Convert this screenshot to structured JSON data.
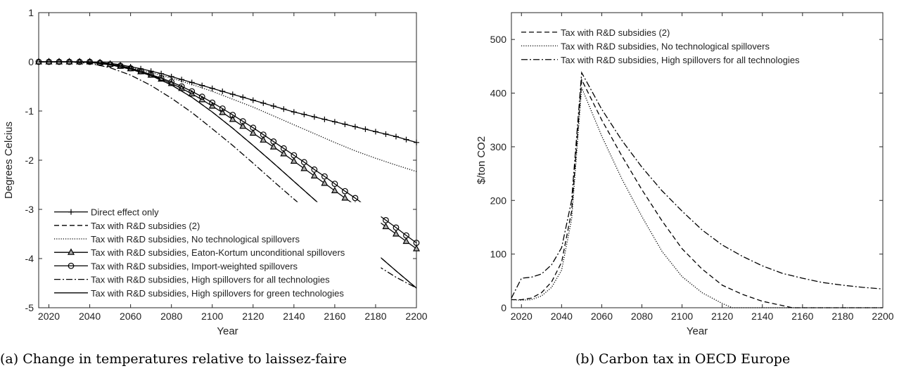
{
  "captions": {
    "a": "(a) Change in temperatures relative to laissez-faire",
    "b": "(b) Carbon tax in OECD Europe"
  },
  "chart_data": [
    {
      "type": "line",
      "xlabel": "Year",
      "ylabel": "Degrees Celcius",
      "xlim": [
        2015,
        2200
      ],
      "ylim": [
        -5,
        1
      ],
      "xticks": [
        "2020",
        "2040",
        "2060",
        "2080",
        "2100",
        "2120",
        "2140",
        "2160",
        "2180",
        "2200"
      ],
      "yticks": [
        "-5",
        "-4",
        "-3",
        "-2",
        "-1",
        "0",
        "1"
      ],
      "legend_position": "bottom-left",
      "reference_line_y": 0,
      "series": [
        {
          "name": "Direct effect only",
          "style": "solid-plus",
          "x": [
            2015,
            2020,
            2025,
            2030,
            2035,
            2040,
            2045,
            2050,
            2055,
            2060,
            2065,
            2070,
            2075,
            2080,
            2085,
            2090,
            2095,
            2100,
            2105,
            2110,
            2115,
            2120,
            2125,
            2130,
            2135,
            2140,
            2145,
            2150,
            2155,
            2160,
            2165,
            2170,
            2175,
            2180,
            2185,
            2190,
            2195,
            2200
          ],
          "y": [
            0,
            0,
            0,
            0,
            0,
            0,
            -0.01,
            -0.03,
            -0.06,
            -0.1,
            -0.14,
            -0.19,
            -0.24,
            -0.3,
            -0.36,
            -0.42,
            -0.48,
            -0.54,
            -0.6,
            -0.66,
            -0.72,
            -0.78,
            -0.84,
            -0.9,
            -0.96,
            -1.02,
            -1.07,
            -1.12,
            -1.17,
            -1.22,
            -1.27,
            -1.32,
            -1.37,
            -1.42,
            -1.47,
            -1.52,
            -1.58,
            -1.64
          ]
        },
        {
          "name": "Tax with R&D subsidies (2)",
          "style": "dashed",
          "x": [
            2015,
            2020,
            2030,
            2040,
            2050,
            2060,
            2070,
            2080,
            2090,
            2100,
            2110,
            2120,
            2130,
            2140,
            2150,
            2160,
            2170,
            2180,
            2190,
            2200
          ],
          "y": [
            0,
            0,
            0,
            -0.01,
            -0.06,
            -0.14,
            -0.27,
            -0.47,
            -0.72,
            -1.02,
            -1.35,
            -1.7,
            -2.06,
            -2.43,
            -2.8,
            -3.17,
            -3.53,
            -3.89,
            -4.25,
            -4.6
          ]
        },
        {
          "name": "Tax with R&D subsidies, No technological spillovers",
          "style": "dotted",
          "x": [
            2015,
            2020,
            2030,
            2040,
            2050,
            2060,
            2070,
            2080,
            2090,
            2100,
            2110,
            2120,
            2130,
            2140,
            2150,
            2160,
            2170,
            2180,
            2190,
            2200
          ],
          "y": [
            0,
            0,
            0,
            -0.01,
            -0.05,
            -0.12,
            -0.22,
            -0.33,
            -0.46,
            -0.6,
            -0.76,
            -0.92,
            -1.1,
            -1.28,
            -1.46,
            -1.64,
            -1.81,
            -1.96,
            -2.1,
            -2.23
          ]
        },
        {
          "name": "Tax with R&D subsidies, Eaton-Kortum unconditional spillovers",
          "style": "solid-triangle",
          "x": [
            2015,
            2020,
            2025,
            2030,
            2035,
            2040,
            2045,
            2050,
            2055,
            2060,
            2065,
            2070,
            2075,
            2080,
            2085,
            2090,
            2095,
            2100,
            2105,
            2110,
            2115,
            2120,
            2125,
            2130,
            2135,
            2140,
            2145,
            2150,
            2155,
            2160,
            2165,
            2170,
            2175,
            2180,
            2185,
            2190,
            2195,
            2200
          ],
          "y": [
            0,
            0,
            0,
            0,
            0,
            0,
            -0.02,
            -0.05,
            -0.09,
            -0.14,
            -0.2,
            -0.27,
            -0.35,
            -0.44,
            -0.54,
            -0.65,
            -0.77,
            -0.9,
            -1.03,
            -1.17,
            -1.31,
            -1.45,
            -1.59,
            -1.73,
            -1.87,
            -2.02,
            -2.17,
            -2.32,
            -2.47,
            -2.62,
            -2.77,
            -2.91,
            -3.05,
            -3.2,
            -3.35,
            -3.5,
            -3.65,
            -3.8
          ]
        },
        {
          "name": "Tax with R&D subsidies, Import-weighted spillovers",
          "style": "solid-circle",
          "x": [
            2015,
            2020,
            2025,
            2030,
            2035,
            2040,
            2045,
            2050,
            2055,
            2060,
            2065,
            2070,
            2075,
            2080,
            2085,
            2090,
            2095,
            2100,
            2105,
            2110,
            2115,
            2120,
            2125,
            2130,
            2135,
            2140,
            2145,
            2150,
            2155,
            2160,
            2165,
            2170,
            2175,
            2180,
            2185,
            2190,
            2195,
            2200
          ],
          "y": [
            0,
            0,
            0,
            0,
            0,
            0,
            -0.02,
            -0.05,
            -0.08,
            -0.13,
            -0.19,
            -0.26,
            -0.33,
            -0.41,
            -0.5,
            -0.6,
            -0.71,
            -0.83,
            -0.95,
            -1.08,
            -1.21,
            -1.34,
            -1.48,
            -1.62,
            -1.76,
            -1.9,
            -2.04,
            -2.19,
            -2.33,
            -2.48,
            -2.63,
            -2.77,
            -2.92,
            -3.07,
            -3.22,
            -3.37,
            -3.53,
            -3.68
          ]
        },
        {
          "name": "Tax with R&D subsidies, High spillovers for all technologies",
          "style": "dashdot",
          "x": [
            2015,
            2020,
            2030,
            2040,
            2050,
            2060,
            2070,
            2080,
            2090,
            2100,
            2110,
            2120,
            2130,
            2140,
            2150,
            2160,
            2170,
            2180,
            2190,
            2200
          ],
          "y": [
            0,
            0,
            0,
            -0.03,
            -0.12,
            -0.27,
            -0.48,
            -0.74,
            -1.03,
            -1.36,
            -1.7,
            -2.06,
            -2.43,
            -2.79,
            -3.14,
            -3.48,
            -3.81,
            -4.12,
            -4.38,
            -4.6
          ]
        },
        {
          "name": "Tax with R&D subsidies, High spillovers for green technologies",
          "style": "solid",
          "x": [
            2015,
            2020,
            2030,
            2040,
            2050,
            2060,
            2070,
            2080,
            2090,
            2100,
            2110,
            2120,
            2130,
            2140,
            2150,
            2160,
            2170,
            2180,
            2190,
            2200
          ],
          "y": [
            0,
            0,
            0,
            -0.01,
            -0.06,
            -0.15,
            -0.28,
            -0.47,
            -0.72,
            -1.02,
            -1.35,
            -1.7,
            -2.06,
            -2.43,
            -2.8,
            -3.17,
            -3.53,
            -3.89,
            -4.25,
            -4.6
          ]
        }
      ]
    },
    {
      "type": "line",
      "xlabel": "Year",
      "ylabel": "$/ton CO2",
      "xlim": [
        2015,
        2200
      ],
      "ylim": [
        0,
        550
      ],
      "xticks": [
        "2020",
        "2040",
        "2060",
        "2080",
        "2100",
        "2120",
        "2140",
        "2160",
        "2180",
        "2200"
      ],
      "yticks": [
        "0",
        "100",
        "200",
        "300",
        "400",
        "500"
      ],
      "legend_position": "top-left",
      "series": [
        {
          "name": "Tax with R&D subsidies (2)",
          "style": "dashed",
          "x": [
            2015,
            2020,
            2025,
            2030,
            2035,
            2040,
            2045,
            2050,
            2060,
            2070,
            2080,
            2090,
            2100,
            2110,
            2120,
            2130,
            2140,
            2150,
            2155,
            2160,
            2170,
            2180,
            2190,
            2200
          ],
          "y": [
            15,
            15,
            18,
            28,
            48,
            85,
            180,
            425,
            350,
            283,
            220,
            162,
            110,
            72,
            42,
            25,
            12,
            4,
            0,
            0,
            0,
            0,
            0,
            0
          ]
        },
        {
          "name": "Tax with R&D subsidies, No technological spillovers",
          "style": "dotted",
          "x": [
            2015,
            2020,
            2025,
            2030,
            2035,
            2040,
            2045,
            2050,
            2060,
            2070,
            2080,
            2090,
            2100,
            2110,
            2120,
            2125,
            2130,
            2140,
            2160,
            2180,
            2200
          ],
          "y": [
            15,
            14,
            15,
            22,
            38,
            70,
            165,
            410,
            320,
            240,
            170,
            105,
            58,
            28,
            8,
            0,
            0,
            0,
            0,
            0,
            0
          ]
        },
        {
          "name": "Tax with R&D subsidies, High spillovers for all technologies",
          "style": "dashdot",
          "x": [
            2015,
            2020,
            2025,
            2030,
            2035,
            2040,
            2045,
            2050,
            2060,
            2070,
            2080,
            2090,
            2100,
            2110,
            2120,
            2130,
            2140,
            2150,
            2160,
            2170,
            2180,
            2190,
            2200
          ],
          "y": [
            18,
            55,
            57,
            63,
            80,
            112,
            200,
            438,
            370,
            312,
            262,
            218,
            180,
            145,
            117,
            96,
            78,
            64,
            55,
            47,
            42,
            38,
            35
          ]
        }
      ]
    }
  ]
}
